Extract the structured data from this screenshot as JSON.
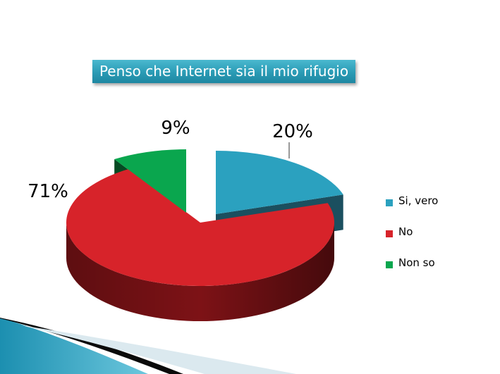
{
  "chart_data": {
    "type": "pie",
    "title": "Penso che Internet sia il mio rifugio",
    "categories": [
      "Si, vero",
      "No",
      "Non so"
    ],
    "values": [
      20,
      71,
      9
    ],
    "data_labels": [
      "20%",
      "71%",
      "9%"
    ],
    "unit": "%",
    "legend_position": "right",
    "three_d": true,
    "exploded": true,
    "colors": [
      "#2ba1bf",
      "#d7232a",
      "#0aa64e"
    ],
    "side_colors": [
      "#1b4f5f",
      "#7d1216",
      "#054a22"
    ]
  }
}
